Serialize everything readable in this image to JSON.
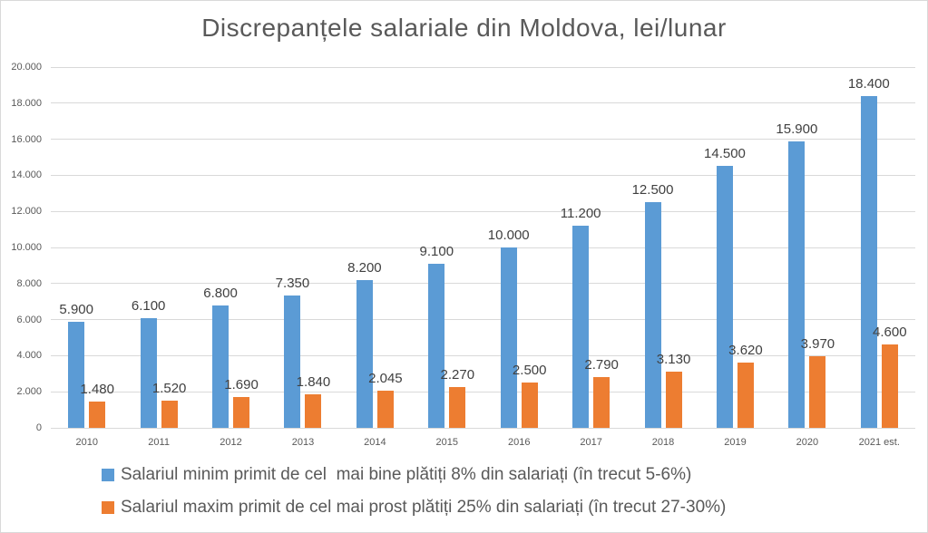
{
  "chart_data": {
    "type": "bar",
    "title": "Discrepanțele salariale din Moldova, lei/lunar",
    "categories": [
      "2010",
      "2011",
      "2012",
      "2013",
      "2014",
      "2015",
      "2016",
      "2017",
      "2018",
      "2019",
      "2020",
      "2021 est."
    ],
    "series": [
      {
        "name": "Salariul minim primit de cel  mai bine plătiți 8% din salariați (în trecut 5-6%)",
        "color": "#5B9BD5",
        "values": [
          5900,
          6100,
          6800,
          7350,
          8200,
          9100,
          10000,
          11200,
          12500,
          14500,
          15900,
          18400
        ],
        "labels": [
          "5.900",
          "6.100",
          "6.800",
          "7.350",
          "8.200",
          "9.100",
          "10.000",
          "11.200",
          "12.500",
          "14.500",
          "15.900",
          "18.400"
        ]
      },
      {
        "name": "Salariul maxim primit de cel mai prost plătiți 25% din salariați (în trecut 27-30%)",
        "color": "#ED7D31",
        "values": [
          1480,
          1520,
          1690,
          1840,
          2045,
          2270,
          2500,
          2790,
          3130,
          3620,
          3970,
          4600
        ],
        "labels": [
          "1.480",
          "1.520",
          "1.690",
          "1.840",
          "2.045",
          "2.270",
          "2.500",
          "2.790",
          "3.130",
          "3.620",
          "3.970",
          "4.600"
        ]
      }
    ],
    "ylim": [
      0,
      20000
    ],
    "ytick_interval": 2000,
    "ytick_labels": [
      "0",
      "2.000",
      "4.000",
      "6.000",
      "8.000",
      "10.000",
      "12.000",
      "14.000",
      "16.000",
      "18.000",
      "20.000"
    ],
    "grid": true,
    "legend_position": "bottom",
    "colors": {
      "gridline": "#D9D9D9",
      "frame_border": "#D9D9D9",
      "title_text": "#595959",
      "axis_text": "#595959",
      "data_label_text": "#404040",
      "legend_text": "#595959",
      "background": "#FFFFFF"
    }
  }
}
